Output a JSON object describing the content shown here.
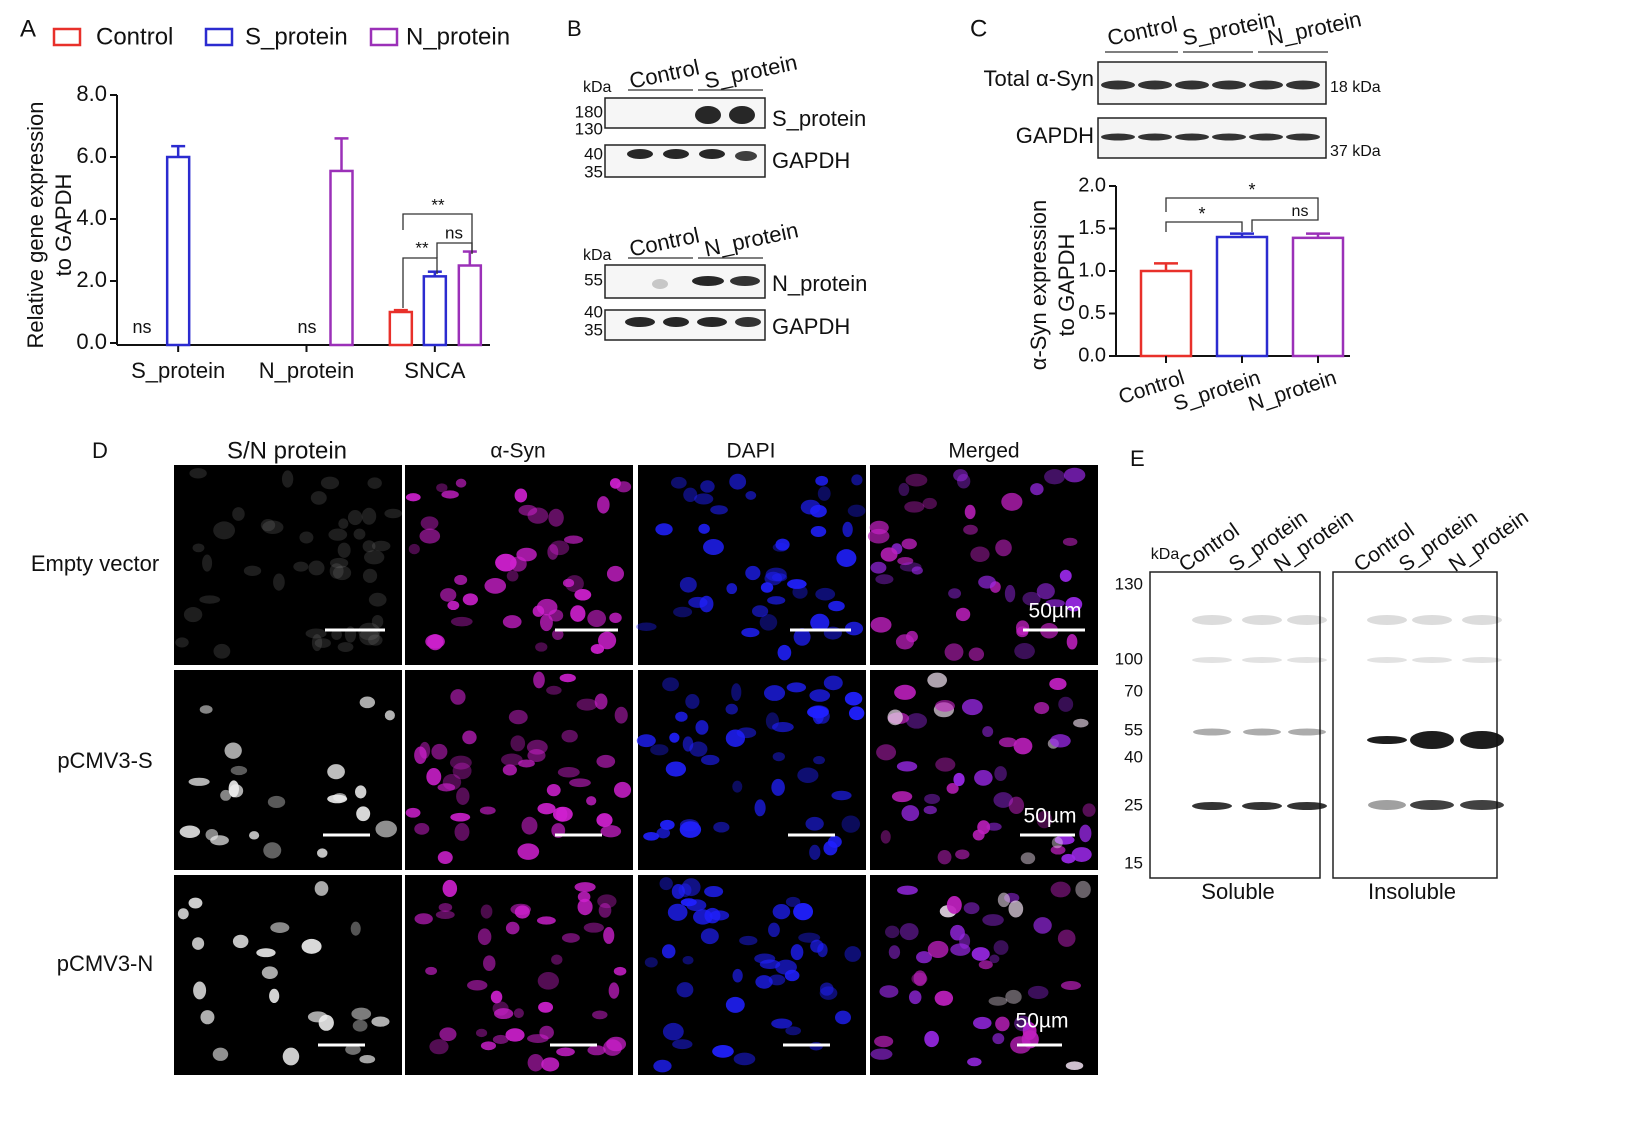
{
  "chart_data": [
    {
      "type": "grouped_bar",
      "panel_label": "A",
      "y_label": [
        "Relative gene expression",
        "to GAPDH"
      ],
      "categories": [
        "S_protein",
        "N_protein",
        "SNCA"
      ],
      "series": [
        {
          "name": "Control",
          "color": "#e8302a",
          "values": [
            null,
            null,
            1.0
          ],
          "errors": [
            null,
            null,
            0.06
          ]
        },
        {
          "name": "S_protein",
          "color": "#2b2bd0",
          "values": [
            6.0,
            null,
            2.15
          ],
          "errors": [
            0.35,
            null,
            0.15
          ]
        },
        {
          "name": "N_protein",
          "color": "#9b30b8",
          "values": [
            null,
            5.55,
            2.5
          ],
          "errors": [
            null,
            1.05,
            0.45
          ]
        }
      ],
      "ylim": [
        0,
        8
      ],
      "yticks": [
        {
          "value": 0,
          "label": "0.0"
        },
        {
          "value": 2,
          "label": "2.0"
        },
        {
          "value": 4,
          "label": "4.0"
        },
        {
          "value": 6,
          "label": "6.0"
        },
        {
          "value": 8,
          "label": "8.0"
        }
      ],
      "annotations": [
        "ns",
        "ns",
        "**",
        "**",
        "ns"
      ]
    },
    {
      "type": "bar",
      "panel_label": "C",
      "y_label": [
        "α-Syn expression",
        "to GAPDH"
      ],
      "categories": [
        "Control",
        "S_protein",
        "N_protein"
      ],
      "colors": [
        "#e8302a",
        "#2b2bd0",
        "#9b30b8"
      ],
      "values": [
        1.0,
        1.4,
        1.39
      ],
      "errors": [
        0.09,
        0.04,
        0.05
      ],
      "ylim": [
        0,
        2
      ],
      "yticks": [
        {
          "value": 0,
          "label": "0.0"
        },
        {
          "value": 0.5,
          "label": "0.5"
        },
        {
          "value": 1,
          "label": "1.0"
        },
        {
          "value": 1.5,
          "label": "1.5"
        },
        {
          "value": 2,
          "label": "2.0"
        }
      ],
      "annotations": [
        "*",
        "*",
        "ns"
      ]
    }
  ],
  "panel_b": {
    "label": "B",
    "blots": [
      {
        "kda": "kDa",
        "lanes": [
          "Control",
          "S_protein"
        ],
        "markers": [
          "180",
          "130",
          "40",
          "35"
        ],
        "bands": [
          "S_protein",
          "GAPDH"
        ]
      },
      {
        "kda": "kDa",
        "lanes": [
          "Control",
          "N_protein"
        ],
        "markers": [
          "55",
          "40",
          "35"
        ],
        "bands": [
          "N_protein",
          "GAPDH"
        ]
      }
    ]
  },
  "panel_c_blot": {
    "lanes": [
      "Control",
      "S_protein",
      "N_protein"
    ],
    "rows": [
      {
        "name": "Total α-Syn",
        "size": "18 kDa"
      },
      {
        "name": "GAPDH",
        "size": "37 kDa"
      }
    ]
  },
  "panel_d": {
    "label": "D",
    "columns": [
      "S/N protein",
      "α-Syn",
      "DAPI",
      "Merged"
    ],
    "rows": [
      "Empty vector",
      "pCMV3-S",
      "pCMV3-N"
    ],
    "scale_bar": "50µm"
  },
  "panel_e": {
    "label": "E",
    "kda": "kDa",
    "markers": [
      "130",
      "100",
      "70",
      "55",
      "40",
      "25",
      "15"
    ],
    "blots": [
      {
        "lanes": [
          "Control",
          "S_protein",
          "N_protein"
        ],
        "name": "Soluble"
      },
      {
        "lanes": [
          "Control",
          "S_protein",
          "N_protein"
        ],
        "name": "Insoluble"
      }
    ]
  }
}
